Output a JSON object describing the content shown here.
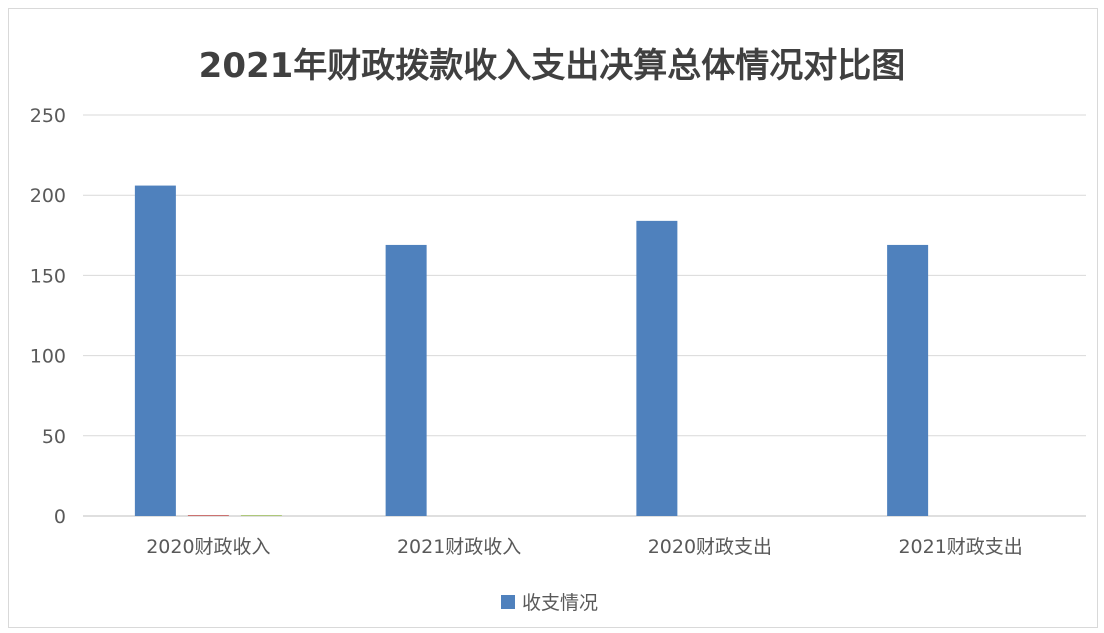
{
  "chart_data": {
    "type": "bar",
    "title": "2021年财政拨款收入支出决算总体情况对比图",
    "categories": [
      "2020财政收入",
      "2021财政收入",
      "2020财政支出",
      "2021财政支出"
    ],
    "series": [
      {
        "name": "收支情况",
        "values": [
          206,
          169,
          184,
          169
        ],
        "color": "#4f81bd"
      },
      {
        "values": [
          0.5,
          0,
          0,
          0
        ],
        "color": "#c0504d"
      },
      {
        "values": [
          0.5,
          0,
          0,
          0
        ],
        "color": "#9bbb59"
      }
    ],
    "ylim": [
      0,
      250
    ],
    "yticks": [
      0,
      50,
      100,
      150,
      200,
      250
    ],
    "grid": true,
    "legend": "bottom"
  }
}
